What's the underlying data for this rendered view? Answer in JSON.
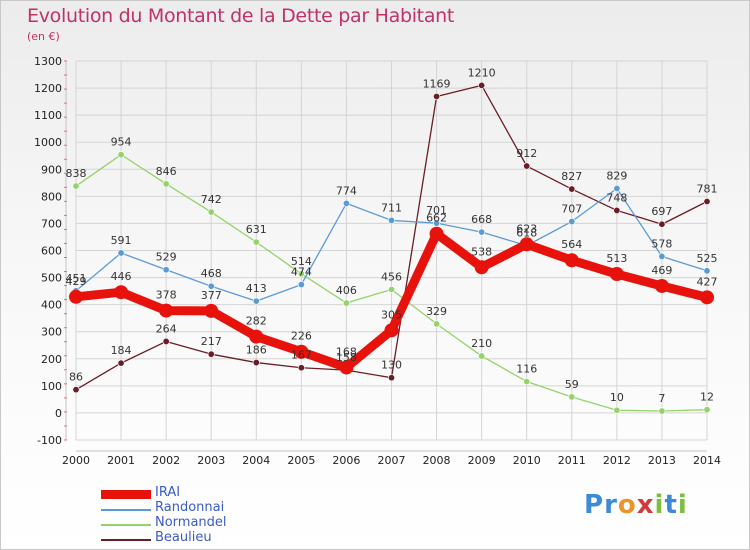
{
  "header": {
    "title": "Evolution du Montant de la Dette par Habitant",
    "subtitle": "(en €)"
  },
  "logo": {
    "text": "Proxiti",
    "letters": [
      {
        "ch": "P",
        "color": "#3d8ad6"
      },
      {
        "ch": "r",
        "color": "#3d8ad6"
      },
      {
        "ch": "o",
        "color": "#e8952c"
      },
      {
        "ch": "x",
        "color": "#d23b3b"
      },
      {
        "ch": "i",
        "color": "#7cbf3b"
      },
      {
        "ch": "t",
        "color": "#3d8ad6"
      },
      {
        "ch": "i",
        "color": "#7cbf3b"
      }
    ]
  },
  "chart_data": {
    "type": "line",
    "title": "Evolution du Montant de la Dette par Habitant",
    "subtitle": "(en €)",
    "xlabel": "",
    "ylabel": "",
    "categories": [
      "2000",
      "2001",
      "2002",
      "2003",
      "2004",
      "2005",
      "2006",
      "2007",
      "2008",
      "2009",
      "2010",
      "2011",
      "2012",
      "2013",
      "2014"
    ],
    "ylim": [
      -100,
      1300
    ],
    "yticks": [
      -100,
      0,
      100,
      200,
      300,
      400,
      500,
      600,
      700,
      800,
      900,
      1000,
      1100,
      1200,
      1300
    ],
    "grid": true,
    "legend_position": "bottom-left",
    "series": [
      {
        "name": "Beaulieu",
        "color": "#6b1c24",
        "style": "thin",
        "values": [
          86,
          184,
          264,
          217,
          186,
          167,
          158,
          130,
          1169,
          1210,
          912,
          827,
          748,
          697,
          781
        ],
        "labels": [
          "86",
          "184",
          "264",
          "217",
          "186",
          "167",
          "158",
          "130",
          "1169",
          "1210",
          "912",
          "827",
          "748",
          "697",
          "781"
        ]
      },
      {
        "name": "Normandel",
        "color": "#94d36a",
        "style": "thin",
        "values": [
          838,
          954,
          846,
          742,
          631,
          514,
          406,
          456,
          329,
          210,
          116,
          59,
          10,
          7,
          12
        ],
        "labels": [
          "838",
          "954",
          "846",
          "742",
          "631",
          "514",
          "406",
          "456",
          "329",
          "210",
          "116",
          "59",
          "10",
          "7",
          "12"
        ]
      },
      {
        "name": "Randonnai",
        "color": "#5a9bd5",
        "style": "thin",
        "values": [
          451,
          591,
          529,
          468,
          413,
          474,
          774,
          711,
          701,
          668,
          618,
          707,
          829,
          578,
          525
        ],
        "labels": [
          "451",
          "591",
          "529",
          "468",
          "413",
          "474",
          "774",
          "711",
          "701",
          "668",
          "618",
          "707",
          "829",
          "578",
          "525"
        ]
      },
      {
        "name": "IRAI",
        "color": "#e8120c",
        "style": "thick",
        "values": [
          429,
          446,
          378,
          377,
          282,
          226,
          168,
          305,
          662,
          538,
          623,
          564,
          513,
          469,
          427
        ],
        "labels": [
          "429",
          "446",
          "378",
          "377",
          "282",
          "226",
          "168",
          "305",
          "662",
          "538",
          "623",
          "564",
          "513",
          "469",
          "427"
        ]
      }
    ]
  }
}
